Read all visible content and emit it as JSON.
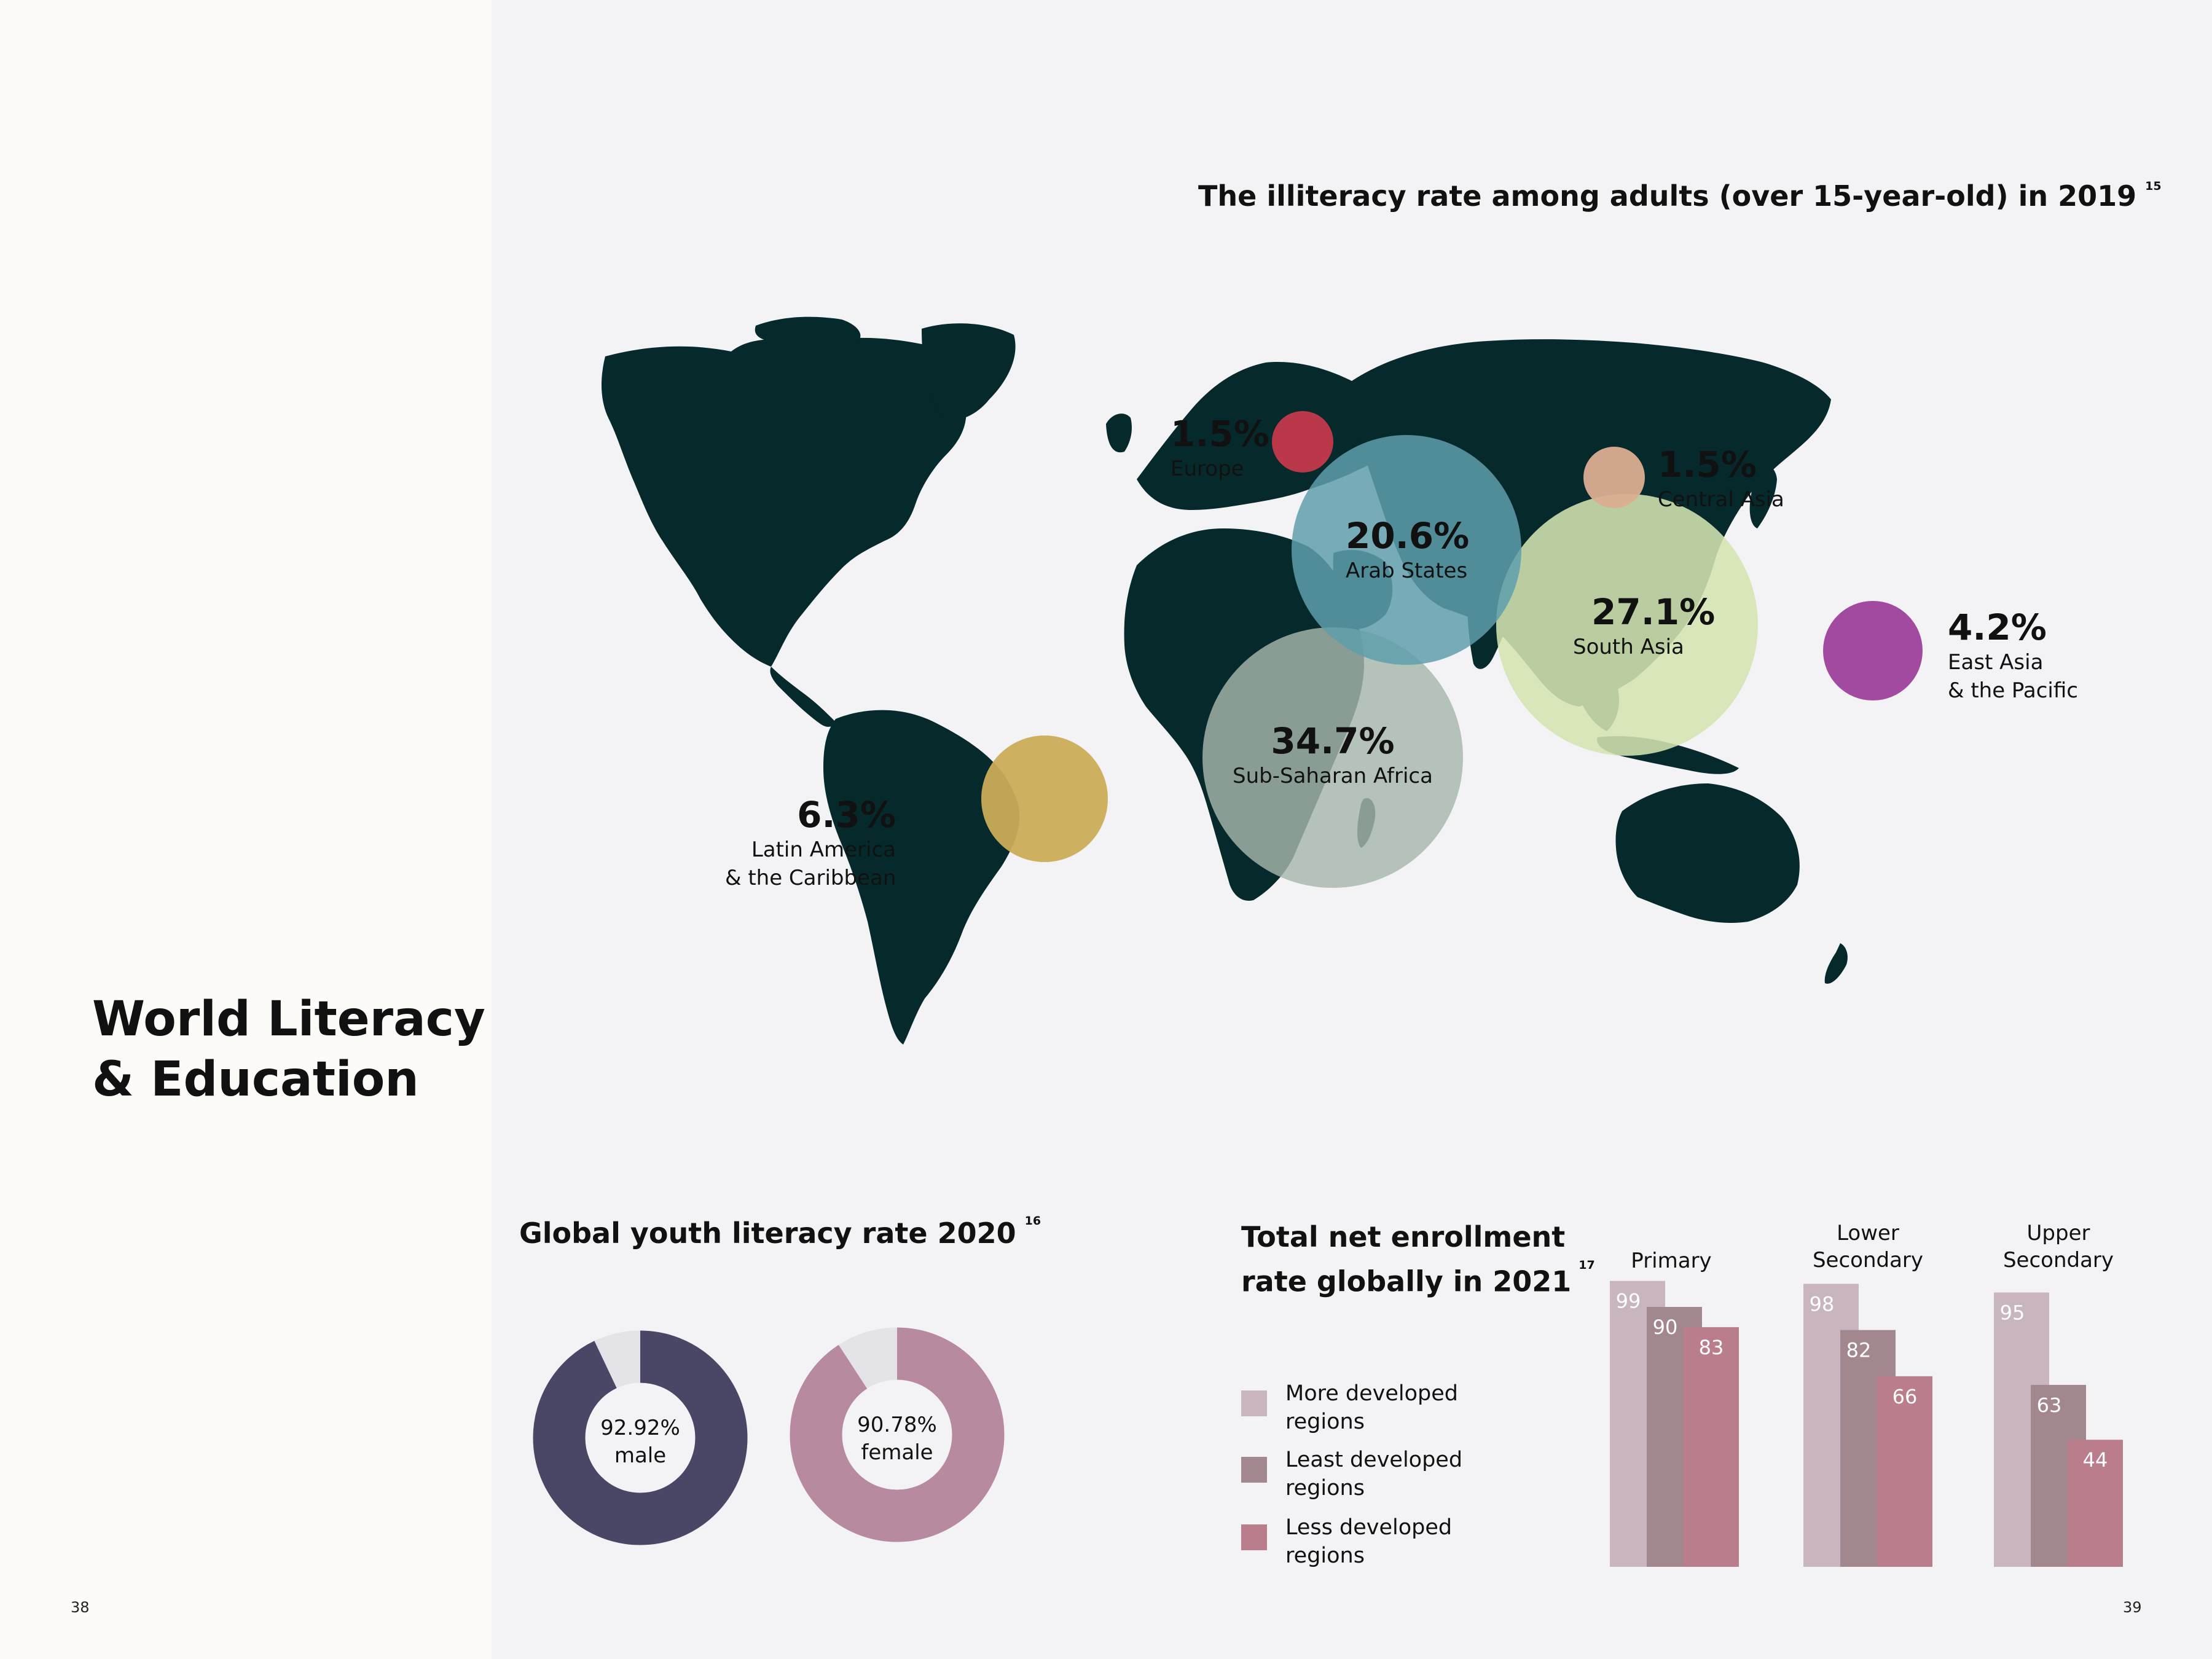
{
  "left_page": {
    "title_lines": [
      "World Literacy",
      "& Education"
    ],
    "page_number": "38"
  },
  "right_page": {
    "page_number": "39"
  },
  "map_section": {
    "title": "The illiteracy rate among adults (over 15-year-old) in 2019",
    "footnote": "15"
  },
  "youth_section": {
    "title": "Global youth literacy rate 2020",
    "footnote": "16"
  },
  "enrollment_section": {
    "title_lines": [
      "Total net enrollment",
      "rate globally in 2021"
    ],
    "footnote": "17"
  },
  "colors": {
    "land": "#062a2b",
    "europe": "#d43a4f",
    "arab": "#5f9fab",
    "central_asia": "#dbae92",
    "south_asia": "#d4e4b0",
    "east_asia": "#9a3c98",
    "latin_america": "#cbac58",
    "africa": "#a7b7ad",
    "male_ring": "#4a4665",
    "female_ring": "#b88aa0",
    "ring_rest": "#e4e3e7",
    "more_developed": "#c8b5bf",
    "least_developed": "#a2878f",
    "less_developed": "#b97d8b"
  },
  "chart_data": [
    {
      "type": "bubble-map",
      "title": "The illiteracy rate among adults (over 15-year-old) in 2019",
      "unit": "%",
      "regions": [
        {
          "name": "Europe",
          "value": 1.5,
          "label": "1.5%"
        },
        {
          "name": "Arab States",
          "value": 20.6,
          "label": "20.6%"
        },
        {
          "name": "Central Asia",
          "value": 1.5,
          "label": "1.5%"
        },
        {
          "name": "South Asia",
          "value": 27.1,
          "label": "27.1%"
        },
        {
          "name": "East Asia & the Pacific",
          "name_lines": [
            "East Asia",
            "& the Pacific"
          ],
          "value": 4.2,
          "label": "4.2%"
        },
        {
          "name": "Latin America & the Caribbean",
          "name_lines": [
            "Latin America",
            "& the Caribbean"
          ],
          "value": 6.3,
          "label": "6.3%"
        },
        {
          "name": "Sub-Saharan Africa",
          "value": 34.7,
          "label": "34.7%"
        }
      ]
    },
    {
      "type": "pie",
      "title": "Global youth literacy rate 2020",
      "series": [
        {
          "name": "male",
          "value": 92.92,
          "label": "92.92%"
        },
        {
          "name": "female",
          "value": 90.78,
          "label": "90.78%"
        }
      ]
    },
    {
      "type": "bar",
      "title": "Total net enrollment rate globally in 2021",
      "categories": [
        "Primary",
        "Lower Secondary",
        "Upper Secondary"
      ],
      "category_lines": [
        [
          "Primary"
        ],
        [
          "Lower",
          "Secondary"
        ],
        [
          "Upper",
          "Secondary"
        ]
      ],
      "series": [
        {
          "name": "More developed regions",
          "name_lines": [
            "More developed",
            "regions"
          ],
          "values": [
            99,
            98,
            95
          ]
        },
        {
          "name": "Least developed regions",
          "name_lines": [
            "Least developed",
            "regions"
          ],
          "values": [
            90,
            82,
            63
          ]
        },
        {
          "name": "Less developed regions",
          "name_lines": [
            "Less developed",
            "regions"
          ],
          "values": [
            83,
            66,
            44
          ]
        }
      ]
    }
  ]
}
